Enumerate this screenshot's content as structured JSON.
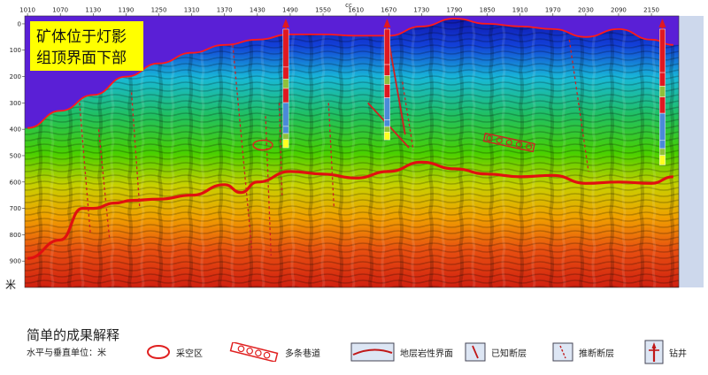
{
  "chart_data": {
    "type": "heatmap",
    "x_title": "cc",
    "x_ticks": [
      1010,
      1070,
      1130,
      1190,
      1250,
      1310,
      1370,
      1430,
      1490,
      1550,
      1610,
      1670,
      1730,
      1790,
      1850,
      1910,
      1970,
      2030,
      2090,
      2150
    ],
    "xlim": [
      1005,
      2200
    ],
    "y_ticks": [
      0,
      100,
      200,
      300,
      400,
      500,
      600,
      700,
      800,
      900
    ],
    "ylim": [
      -30,
      1000
    ],
    "y_unit": "米",
    "surface_profile": {
      "x": [
        1010,
        1070,
        1130,
        1190,
        1250,
        1310,
        1370,
        1430,
        1490,
        1550,
        1610,
        1670,
        1730,
        1790,
        1850,
        1910,
        1970,
        2030,
        2090,
        2150,
        2190
      ],
      "depth": [
        395,
        330,
        270,
        200,
        150,
        110,
        80,
        60,
        40,
        40,
        45,
        45,
        10,
        -20,
        0,
        10,
        20,
        50,
        20,
        60,
        80
      ]
    },
    "coal_interface": {
      "x": [
        1010,
        1070,
        1110,
        1130,
        1170,
        1200,
        1250,
        1310,
        1370,
        1400,
        1430,
        1490,
        1550,
        1610,
        1670,
        1730,
        1790,
        1850,
        1910,
        1970,
        2030,
        2090,
        2150,
        2190
      ],
      "depth": [
        890,
        820,
        700,
        700,
        680,
        670,
        665,
        650,
        610,
        640,
        600,
        560,
        570,
        585,
        560,
        525,
        550,
        570,
        580,
        575,
        605,
        600,
        605,
        580
      ]
    },
    "wells": [
      {
        "x": 1482,
        "top": -20,
        "bottom": 470
      },
      {
        "x": 1667,
        "top": -20,
        "bottom": 440
      },
      {
        "x": 2170,
        "top": -20,
        "bottom": 535
      }
    ],
    "known_faults": [
      {
        "x1": 1632,
        "y1": 300,
        "x2": 1707,
        "y2": 470
      },
      {
        "x1": 1667,
        "y1": 30,
        "x2": 1700,
        "y2": 420
      }
    ],
    "inferred_faults": [
      {
        "x1": 1105,
        "y1": 300,
        "x2": 1125,
        "y2": 800
      },
      {
        "x1": 1140,
        "y1": 400,
        "x2": 1160,
        "y2": 820
      },
      {
        "x1": 1200,
        "y1": 260,
        "x2": 1215,
        "y2": 700
      },
      {
        "x1": 1385,
        "y1": 80,
        "x2": 1420,
        "y2": 860
      },
      {
        "x1": 1445,
        "y1": 350,
        "x2": 1455,
        "y2": 880
      },
      {
        "x1": 1470,
        "y1": 300,
        "x2": 1475,
        "y2": 650
      },
      {
        "x1": 1560,
        "y1": 300,
        "x2": 1570,
        "y2": 700
      },
      {
        "x1": 1695,
        "y1": 220,
        "x2": 1715,
        "y2": 480
      },
      {
        "x1": 2000,
        "y1": 60,
        "x2": 2035,
        "y2": 560
      }
    ],
    "goaf": [
      {
        "x": 1440,
        "depth": 460
      }
    ],
    "roadway": {
      "x1": 1845,
      "y1": 430,
      "x2": 1935,
      "y2": 470
    },
    "annotation": {
      "line1": "矿体位于灯影",
      "line2": "组顶界面下部"
    }
  },
  "legend": {
    "title": "简单的成果解释",
    "units": "水平与垂直单位：米",
    "items": {
      "goaf": "采空区",
      "roadway": "多条巷道",
      "interface": "地层岩性界面",
      "known_fault": "已知断层",
      "inferred_fault": "推断断层",
      "well": "钻井"
    }
  },
  "colors": {
    "sky": "#5a1fd6",
    "surface_line": "#ff1a1a",
    "interface_line": "#e01010",
    "fault_line": "#d02020",
    "inferred_fault": "#cc2222",
    "annotation_bg": "#ffff00"
  }
}
